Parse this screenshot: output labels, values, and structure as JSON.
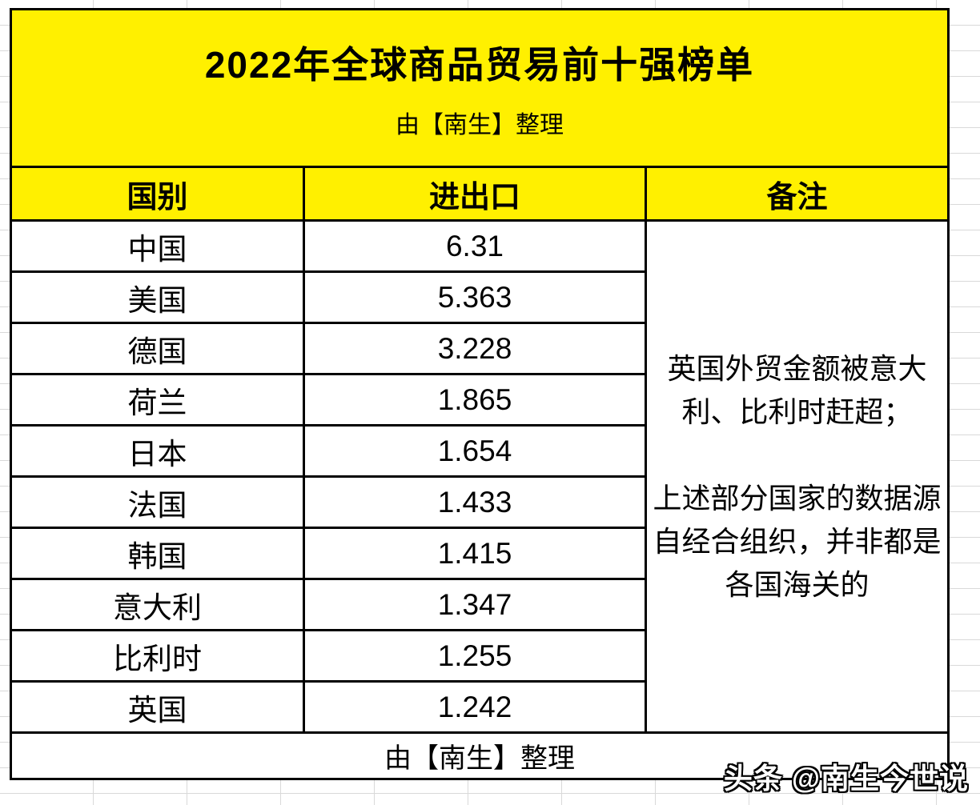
{
  "title": {
    "main": "2022年全球商品贸易前十强榜单",
    "subtitle": "由【南生】整理"
  },
  "table": {
    "headers": [
      "国别",
      "进出口",
      "备注"
    ],
    "rows": [
      {
        "country": "中国",
        "value": "6.31"
      },
      {
        "country": "美国",
        "value": "5.363"
      },
      {
        "country": "德国",
        "value": "3.228"
      },
      {
        "country": "荷兰",
        "value": "1.865"
      },
      {
        "country": "日本",
        "value": "1.654"
      },
      {
        "country": "法国",
        "value": "1.433"
      },
      {
        "country": "韩国",
        "value": "1.415"
      },
      {
        "country": "意大利",
        "value": "1.347"
      },
      {
        "country": "比利时",
        "value": "1.255"
      },
      {
        "country": "英国",
        "value": "1.242"
      }
    ],
    "remarks": "英国外贸金额被意大利、比利时赶超；\n\n上述部分国家的数据源自经合组织，并非都是各国海关的",
    "footer": "由【南生】整理"
  },
  "watermark": "头条 @南生今世说",
  "colors": {
    "header_bg": "#FFF000",
    "border": "#000000",
    "gridline": "#d9d9d9"
  },
  "chart_data": {
    "type": "table",
    "title": "2022年全球商品贸易前十强榜单",
    "subtitle": "由【南生】整理",
    "columns": [
      "国别",
      "进出口",
      "备注"
    ],
    "categories": [
      "中国",
      "美国",
      "德国",
      "荷兰",
      "日本",
      "法国",
      "韩国",
      "意大利",
      "比利时",
      "英国"
    ],
    "values": [
      6.31,
      5.363,
      3.228,
      1.865,
      1.654,
      1.433,
      1.415,
      1.347,
      1.255,
      1.242
    ],
    "remarks": "英国外贸金额被意大利、比利时赶超；\n\n上述部分国家的数据源自经合组织，并非都是各国海关的",
    "footer": "由【南生】整理"
  }
}
